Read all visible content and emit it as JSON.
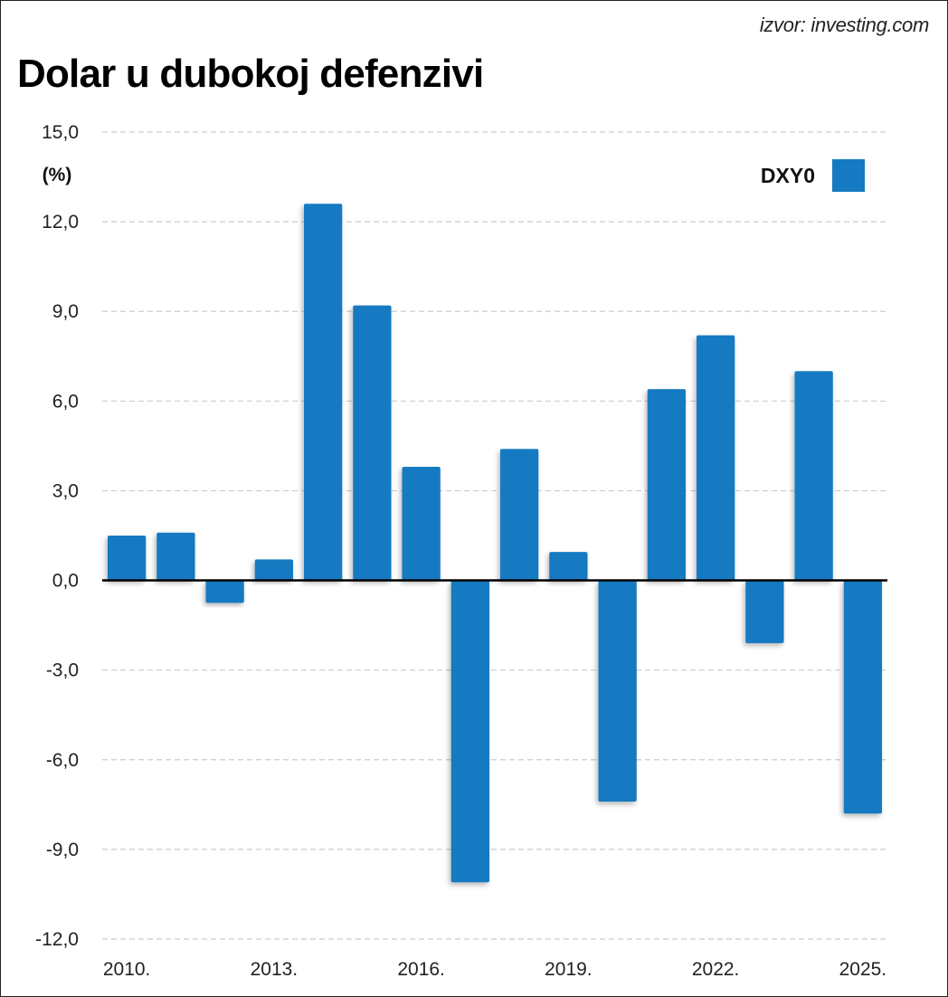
{
  "header": {
    "source": "izvor: investing.com",
    "title": "Dolar u dubokoj defenzivi"
  },
  "colors": {
    "bar": "#157ac2",
    "grid": "#cccccc",
    "zero_line": "#000000"
  },
  "chart_data": {
    "type": "bar",
    "title": "Dolar u dubokoj defenzivi",
    "xlabel": "",
    "ylabel": "(%)",
    "ylim": [
      -12,
      15
    ],
    "yticks": [
      15,
      12,
      9,
      6,
      3,
      0,
      -3,
      -6,
      -9,
      -12
    ],
    "ytick_labels": [
      "15,0",
      "12,0",
      "9,0",
      "6,0",
      "3,0",
      "0,0",
      "-3,0",
      "-6,0",
      "-9,0",
      "-12,0"
    ],
    "categories": [
      "2010",
      "2011",
      "2012",
      "2013",
      "2014",
      "2015",
      "2016",
      "2017",
      "2018",
      "2019",
      "2020",
      "2021",
      "2022",
      "2023",
      "2024",
      "2025"
    ],
    "xtick_labels": [
      {
        "index": 0,
        "label": "2010."
      },
      {
        "index": 3,
        "label": "2013."
      },
      {
        "index": 6,
        "label": "2016."
      },
      {
        "index": 9,
        "label": "2019."
      },
      {
        "index": 12,
        "label": "2022."
      },
      {
        "index": 15,
        "label": "2025."
      }
    ],
    "series": [
      {
        "name": "DXY0",
        "values": [
          1.5,
          1.6,
          -0.75,
          0.7,
          12.6,
          9.2,
          3.8,
          -10.1,
          4.4,
          0.95,
          -7.4,
          6.4,
          8.2,
          -2.1,
          7.0,
          -7.8
        ]
      }
    ],
    "grid": true,
    "legend": {
      "position": "top-right",
      "entries": [
        "DXY0"
      ]
    },
    "source": "izvor: investing.com"
  }
}
